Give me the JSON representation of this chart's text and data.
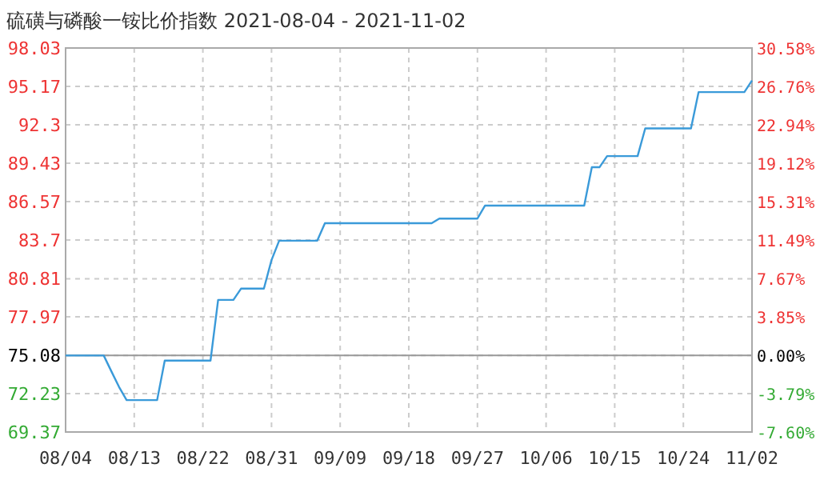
{
  "chart_data": {
    "type": "line",
    "title": "硫磺与磷酸一铵比价指数 2021-08-04 - 2021-11-02",
    "x": [
      "2021-08-04",
      "2021-08-09",
      "2021-08-10",
      "2021-08-11",
      "2021-08-12",
      "2021-08-16",
      "2021-08-17",
      "2021-08-23",
      "2021-08-24",
      "2021-08-26",
      "2021-08-27",
      "2021-08-30",
      "2021-08-31",
      "2021-09-01",
      "2021-09-06",
      "2021-09-07",
      "2021-09-21",
      "2021-09-22",
      "2021-09-27",
      "2021-09-28",
      "2021-10-11",
      "2021-10-12",
      "2021-10-13",
      "2021-10-14",
      "2021-10-18",
      "2021-10-19",
      "2021-10-25",
      "2021-10-26",
      "2021-11-01",
      "2021-11-02"
    ],
    "series": [
      {
        "color": "#3a9ad9",
        "values": [
          75.08,
          75.08,
          73.9,
          72.74,
          71.75,
          71.75,
          74.7,
          74.7,
          79.23,
          79.23,
          80.07,
          80.07,
          82.2,
          83.65,
          83.65,
          84.95,
          84.95,
          85.3,
          85.3,
          86.27,
          86.27,
          89.13,
          89.13,
          89.96,
          89.96,
          92.03,
          92.03,
          94.74,
          94.74,
          95.61
        ]
      }
    ],
    "xlim": [
      "2021-08-04",
      "2021-11-02"
    ],
    "xticks": [
      {
        "value": "2021-08-04",
        "label": "08/04"
      },
      {
        "value": "2021-08-13",
        "label": "08/13"
      },
      {
        "value": "2021-08-22",
        "label": "08/22"
      },
      {
        "value": "2021-08-31",
        "label": "08/31"
      },
      {
        "value": "2021-09-09",
        "label": "09/09"
      },
      {
        "value": "2021-09-18",
        "label": "09/18"
      },
      {
        "value": "2021-09-27",
        "label": "09/27"
      },
      {
        "value": "2021-10-06",
        "label": "10/06"
      },
      {
        "value": "2021-10-15",
        "label": "10/15"
      },
      {
        "value": "2021-10-24",
        "label": "10/24"
      },
      {
        "value": "2021-11-02",
        "label": "11/02"
      }
    ],
    "ylim": [
      69.37,
      98.03
    ],
    "yticks": [
      69.37,
      72.23,
      75.08,
      77.97,
      80.81,
      83.7,
      86.57,
      89.43,
      92.3,
      95.17,
      98.03
    ],
    "y2lim": [
      -7.6,
      30.58
    ],
    "y2ticks": [
      {
        "value": -7.6,
        "label": "-7.60%"
      },
      {
        "value": -3.79,
        "label": "-3.79%"
      },
      {
        "value": 0,
        "label": "0.00%"
      },
      {
        "value": 3.85,
        "label": "3.85%"
      },
      {
        "value": 7.67,
        "label": "7.67%"
      },
      {
        "value": 11.49,
        "label": "11.49%"
      },
      {
        "value": 15.31,
        "label": "15.31%"
      },
      {
        "value": 19.12,
        "label": "19.12%"
      },
      {
        "value": 22.94,
        "label": "22.94%"
      },
      {
        "value": 26.76,
        "label": "26.76%"
      },
      {
        "value": 30.58,
        "label": "30.58%"
      }
    ],
    "ref_lines": [
      {
        "axis": "y",
        "value": 75.08,
        "color": "#999999"
      }
    ],
    "grid": true
  }
}
